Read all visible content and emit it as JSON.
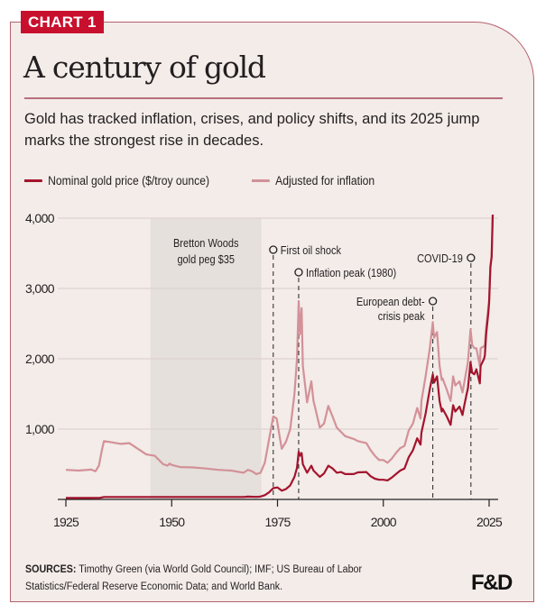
{
  "badge": "CHART 1",
  "title": "A century of gold",
  "subtitle": "Gold has tracked inflation, crises, and policy shifts, and its 2025 jump marks the strongest rise in decades.",
  "legend": [
    {
      "label": "Nominal gold price ($/troy ounce)",
      "color": "#a3142d"
    },
    {
      "label": "Adjusted for inflation",
      "color": "#d39198"
    }
  ],
  "sources_label": "SOURCES:",
  "sources_text": " Timothy Green (via World Gold Council); IMF; US Bureau of Labor Statistics/Federal Reserve Economic Data; and World Bank.",
  "logo": "F&D",
  "colors": {
    "accent": "#c8102e",
    "nominal": "#a3142d",
    "adjusted": "#d39198",
    "shade": "#e5e0dc",
    "grid": "#ddd3d0",
    "text": "#231f20",
    "border": "#b5606f"
  },
  "chart_data": {
    "type": "line",
    "title": "A century of gold",
    "xlabel": "",
    "ylabel": "",
    "xlim": [
      1925,
      2025.5
    ],
    "ylim": [
      0,
      4000
    ],
    "xticks": [
      1925,
      1950,
      1975,
      2000,
      2025
    ],
    "yticks": [
      1000,
      2000,
      3000,
      4000
    ],
    "ytick_labels": [
      "1,000",
      "2,000",
      "3,000",
      "4,000"
    ],
    "xtick_labels": [
      "1925",
      "1950",
      "1975",
      "2000",
      "2025"
    ],
    "grid": true,
    "legend_position": "top-left",
    "shaded_regions": [
      {
        "label": "Bretton Woods gold peg $35",
        "x": [
          1945,
          1971.2
        ]
      }
    ],
    "annotations": [
      {
        "label": "First oil shock",
        "x": 1974,
        "label_side": "right"
      },
      {
        "label": "Inflation peak (1980)",
        "x": 1980,
        "label_side": "right"
      },
      {
        "label": "European debt- crisis peak",
        "x": 2011.7,
        "label_side": "left"
      },
      {
        "label": "COVID-19",
        "x": 2020.7,
        "label_side": "left"
      }
    ],
    "series": [
      {
        "name": "Nominal gold price ($/troy ounce)",
        "points": [
          [
            1925,
            20
          ],
          [
            1930,
            20
          ],
          [
            1933,
            22
          ],
          [
            1934,
            35
          ],
          [
            1940,
            35
          ],
          [
            1950,
            35
          ],
          [
            1960,
            35
          ],
          [
            1967,
            35
          ],
          [
            1968,
            40
          ],
          [
            1970,
            36
          ],
          [
            1971,
            41
          ],
          [
            1972,
            60
          ],
          [
            1973,
            100
          ],
          [
            1974,
            160
          ],
          [
            1975,
            170
          ],
          [
            1976,
            125
          ],
          [
            1977,
            148
          ],
          [
            1978,
            200
          ],
          [
            1979,
            320
          ],
          [
            1979.6,
            450
          ],
          [
            1980,
            680
          ],
          [
            1980.3,
            620
          ],
          [
            1980.7,
            660
          ],
          [
            1981,
            500
          ],
          [
            1982,
            380
          ],
          [
            1983,
            480
          ],
          [
            1983.5,
            410
          ],
          [
            1985,
            320
          ],
          [
            1986,
            370
          ],
          [
            1987,
            480
          ],
          [
            1988,
            440
          ],
          [
            1989,
            380
          ],
          [
            1990,
            390
          ],
          [
            1991,
            360
          ],
          [
            1993,
            360
          ],
          [
            1994,
            385
          ],
          [
            1996,
            390
          ],
          [
            1997,
            330
          ],
          [
            1998,
            295
          ],
          [
            1999,
            280
          ],
          [
            2000,
            280
          ],
          [
            2001,
            270
          ],
          [
            2002,
            310
          ],
          [
            2003,
            360
          ],
          [
            2004,
            410
          ],
          [
            2005,
            440
          ],
          [
            2006,
            600
          ],
          [
            2007,
            700
          ],
          [
            2008,
            870
          ],
          [
            2008.8,
            780
          ],
          [
            2009,
            950
          ],
          [
            2010,
            1220
          ],
          [
            2011,
            1570
          ],
          [
            2011.7,
            1780
          ],
          [
            2012,
            1660
          ],
          [
            2012.7,
            1750
          ],
          [
            2013.3,
            1400
          ],
          [
            2013.8,
            1250
          ],
          [
            2014,
            1290
          ],
          [
            2015,
            1180
          ],
          [
            2015.9,
            1060
          ],
          [
            2016.5,
            1340
          ],
          [
            2017,
            1250
          ],
          [
            2018,
            1320
          ],
          [
            2018.7,
            1200
          ],
          [
            2019,
            1300
          ],
          [
            2019.7,
            1500
          ],
          [
            2020,
            1580
          ],
          [
            2020.6,
            1950
          ],
          [
            2021,
            1800
          ],
          [
            2021.5,
            1780
          ],
          [
            2022,
            1850
          ],
          [
            2022.8,
            1650
          ],
          [
            2023,
            1900
          ],
          [
            2023.8,
            2000
          ],
          [
            2024,
            2050
          ],
          [
            2024.3,
            2350
          ],
          [
            2024.8,
            2650
          ],
          [
            2025,
            2800
          ],
          [
            2025.3,
            3300
          ],
          [
            2025.6,
            3450
          ],
          [
            2025.85,
            4050
          ]
        ]
      },
      {
        "name": "Adjusted for inflation",
        "points": [
          [
            1925,
            420
          ],
          [
            1928,
            410
          ],
          [
            1931,
            425
          ],
          [
            1932,
            400
          ],
          [
            1932.8,
            480
          ],
          [
            1933.5,
            700
          ],
          [
            1934,
            830
          ],
          [
            1936,
            810
          ],
          [
            1938,
            790
          ],
          [
            1940,
            800
          ],
          [
            1942,
            720
          ],
          [
            1944,
            640
          ],
          [
            1946,
            620
          ],
          [
            1947,
            560
          ],
          [
            1948,
            500
          ],
          [
            1949,
            480
          ],
          [
            1949.5,
            510
          ],
          [
            1950,
            490
          ],
          [
            1952,
            460
          ],
          [
            1955,
            455
          ],
          [
            1958,
            440
          ],
          [
            1961,
            420
          ],
          [
            1964,
            410
          ],
          [
            1967,
            380
          ],
          [
            1968,
            420
          ],
          [
            1969,
            400
          ],
          [
            1970,
            360
          ],
          [
            1971,
            380
          ],
          [
            1972,
            520
          ],
          [
            1973,
            850
          ],
          [
            1974,
            1180
          ],
          [
            1974.8,
            1150
          ],
          [
            1975.5,
            900
          ],
          [
            1976,
            720
          ],
          [
            1977,
            820
          ],
          [
            1978,
            1000
          ],
          [
            1979,
            1500
          ],
          [
            1979.6,
            2000
          ],
          [
            1980,
            2820
          ],
          [
            1980.3,
            2350
          ],
          [
            1980.7,
            2720
          ],
          [
            1981,
            1900
          ],
          [
            1982,
            1380
          ],
          [
            1983,
            1680
          ],
          [
            1983.5,
            1400
          ],
          [
            1984,
            1280
          ],
          [
            1985,
            1020
          ],
          [
            1986,
            1080
          ],
          [
            1987,
            1330
          ],
          [
            1988,
            1180
          ],
          [
            1989,
            1020
          ],
          [
            1990,
            960
          ],
          [
            1991,
            900
          ],
          [
            1993,
            860
          ],
          [
            1994,
            830
          ],
          [
            1996,
            800
          ],
          [
            1997,
            700
          ],
          [
            1998,
            620
          ],
          [
            1999,
            560
          ],
          [
            2000,
            560
          ],
          [
            2001,
            520
          ],
          [
            2002,
            580
          ],
          [
            2003,
            660
          ],
          [
            2004,
            730
          ],
          [
            2005,
            760
          ],
          [
            2006,
            980
          ],
          [
            2007,
            1080
          ],
          [
            2008,
            1300
          ],
          [
            2008.8,
            1150
          ],
          [
            2009,
            1400
          ],
          [
            2010,
            1750
          ],
          [
            2011,
            2150
          ],
          [
            2011.7,
            2520
          ],
          [
            2012,
            2300
          ],
          [
            2012.7,
            2380
          ],
          [
            2013.3,
            1900
          ],
          [
            2013.8,
            1700
          ],
          [
            2014,
            1720
          ],
          [
            2015,
            1560
          ],
          [
            2015.9,
            1400
          ],
          [
            2016.5,
            1750
          ],
          [
            2017,
            1620
          ],
          [
            2018,
            1680
          ],
          [
            2018.7,
            1520
          ],
          [
            2019,
            1620
          ],
          [
            2019.7,
            1850
          ],
          [
            2020,
            1950
          ],
          [
            2020.6,
            2420
          ],
          [
            2021,
            2200
          ],
          [
            2021.5,
            2150
          ],
          [
            2022,
            2150
          ],
          [
            2022.8,
            1900
          ],
          [
            2023,
            2150
          ],
          [
            2023.8,
            2180
          ],
          [
            2024,
            2200
          ],
          [
            2024.3,
            2450
          ],
          [
            2024.8,
            2720
          ],
          [
            2025,
            2830
          ],
          [
            2025.3,
            3320
          ],
          [
            2025.6,
            3460
          ],
          [
            2025.85,
            4050
          ]
        ]
      }
    ]
  }
}
